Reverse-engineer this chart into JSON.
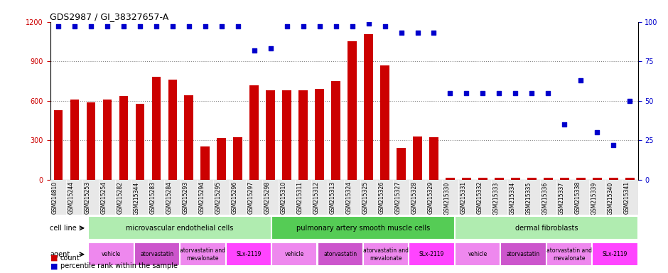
{
  "title": "GDS2987 / GI_38327657-A",
  "samples": [
    "GSM214810",
    "GSM215244",
    "GSM215253",
    "GSM215254",
    "GSM215282",
    "GSM215344",
    "GSM215283",
    "GSM215284",
    "GSM215293",
    "GSM215294",
    "GSM215295",
    "GSM215296",
    "GSM215297",
    "GSM215298",
    "GSM215310",
    "GSM215311",
    "GSM215312",
    "GSM215313",
    "GSM215324",
    "GSM215325",
    "GSM215326",
    "GSM215327",
    "GSM215328",
    "GSM215329",
    "GSM215330",
    "GSM215331",
    "GSM215332",
    "GSM215333",
    "GSM215334",
    "GSM215335",
    "GSM215336",
    "GSM215337",
    "GSM215338",
    "GSM215339",
    "GSM215340",
    "GSM215341"
  ],
  "counts": [
    530,
    610,
    590,
    610,
    635,
    578,
    780,
    760,
    640,
    255,
    320,
    325,
    718,
    678,
    678,
    678,
    690,
    750,
    1055,
    1105,
    870,
    240,
    330,
    325,
    15,
    15,
    15,
    15,
    15,
    15,
    15,
    15,
    15,
    15,
    15,
    15
  ],
  "percentile_ranks": [
    97,
    97,
    97,
    97,
    97,
    97,
    97,
    97,
    97,
    97,
    97,
    97,
    82,
    83,
    97,
    97,
    97,
    97,
    97,
    99,
    97,
    93,
    93,
    93,
    55,
    55,
    55,
    55,
    55,
    55,
    55,
    35,
    63,
    30,
    22,
    50
  ],
  "ylim_left": [
    0,
    1200
  ],
  "ylim_right": [
    0,
    100
  ],
  "yticks_left": [
    0,
    300,
    600,
    900,
    1200
  ],
  "yticks_right": [
    0,
    25,
    50,
    75,
    100
  ],
  "bar_color": "#cc0000",
  "dot_color": "#0000cc",
  "grid_lines": [
    300,
    600,
    900
  ],
  "cell_line_groups": [
    {
      "label": "microvascular endothelial cells",
      "start": 0,
      "end": 12,
      "color": "#b0ecb0"
    },
    {
      "label": "pulmonary artery smooth muscle cells",
      "start": 12,
      "end": 24,
      "color": "#55cc55"
    },
    {
      "label": "dermal fibroblasts",
      "start": 24,
      "end": 36,
      "color": "#b0ecb0"
    }
  ],
  "agent_groups": [
    {
      "label": "vehicle",
      "start": 0,
      "end": 3,
      "color": "#ee88ee"
    },
    {
      "label": "atorvastatin",
      "start": 3,
      "end": 6,
      "color": "#cc55cc"
    },
    {
      "label": "atorvastatin and\nmevalonate",
      "start": 6,
      "end": 9,
      "color": "#ee88ee"
    },
    {
      "label": "SLx-2119",
      "start": 9,
      "end": 12,
      "color": "#ff44ff"
    },
    {
      "label": "vehicle",
      "start": 12,
      "end": 15,
      "color": "#ee88ee"
    },
    {
      "label": "atorvastatin",
      "start": 15,
      "end": 18,
      "color": "#cc55cc"
    },
    {
      "label": "atorvastatin and\nmevalonate",
      "start": 18,
      "end": 21,
      "color": "#ee88ee"
    },
    {
      "label": "SLx-2119",
      "start": 21,
      "end": 24,
      "color": "#ff44ff"
    },
    {
      "label": "vehicle",
      "start": 24,
      "end": 27,
      "color": "#ee88ee"
    },
    {
      "label": "atorvastatin",
      "start": 27,
      "end": 30,
      "color": "#cc55cc"
    },
    {
      "label": "atorvastatin and\nmevalonate",
      "start": 30,
      "end": 33,
      "color": "#ee88ee"
    },
    {
      "label": "SLx-2119",
      "start": 33,
      "end": 36,
      "color": "#ff44ff"
    }
  ],
  "legend_count_label": "count",
  "legend_pct_label": "percentile rank within the sample",
  "legend_count_color": "#cc0000",
  "legend_pct_color": "#0000cc",
  "cell_line_label": "cell line",
  "agent_label": "agent",
  "bg_color": "#e8e8e8"
}
